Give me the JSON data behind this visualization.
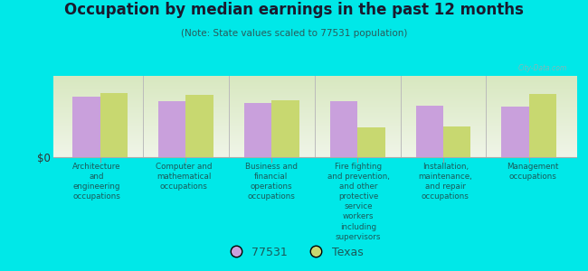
{
  "title": "Occupation by median earnings in the past 12 months",
  "subtitle": "(Note: State values scaled to 77531 population)",
  "background_color": "#00e8e8",
  "plot_bg_top": "#d8e8c0",
  "plot_bg_bottom": "#f0f5e8",
  "categories": [
    "Architecture\nand\nengineering\noccupations",
    "Computer and\nmathematical\noccupations",
    "Business and\nfinancial\noperations\noccupations",
    "Fire fighting\nand prevention,\nand other\nprotective\nservice\nworkers\nincluding\nsupervisors",
    "Installation,\nmaintenance,\nand repair\noccupations",
    "Management\noccupations"
  ],
  "values_77531": [
    0.78,
    0.72,
    0.7,
    0.72,
    0.67,
    0.65
  ],
  "values_texas": [
    0.83,
    0.81,
    0.73,
    0.38,
    0.4,
    0.82
  ],
  "color_77531": "#c9a0dc",
  "color_texas": "#c8d870",
  "ylabel": "$0",
  "legend_77531": "77531",
  "legend_texas": "Texas",
  "bar_width": 0.32,
  "ylim": [
    0,
    1.05
  ],
  "title_color": "#1a1a2e",
  "subtitle_color": "#2a5a5a",
  "label_color": "#1a5a5a",
  "watermark": "City-Data.com"
}
